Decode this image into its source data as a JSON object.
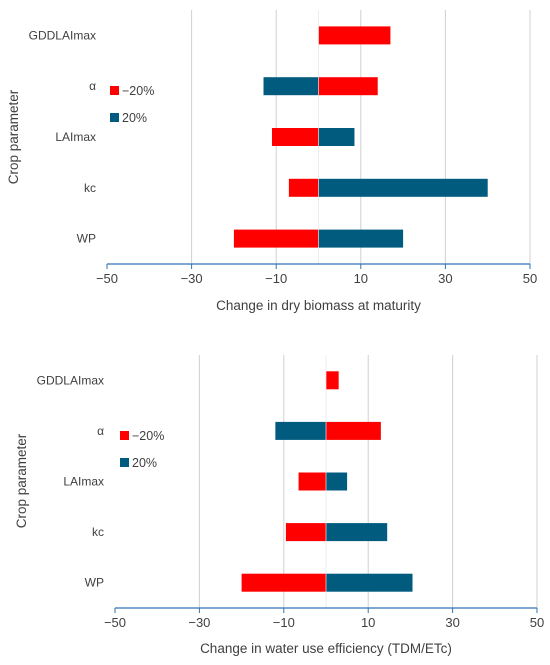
{
  "chart_data": [
    {
      "type": "bar",
      "orientation": "horizontal",
      "categories": [
        "GDDLAImax",
        "α",
        "LAImax",
        "kc",
        "WP"
      ],
      "series": [
        {
          "name": "−20%",
          "values": [
            17,
            14,
            -11,
            -7,
            -20
          ]
        },
        {
          "name": "20%",
          "values": [
            null,
            -13,
            8.5,
            40,
            20
          ]
        }
      ],
      "xlabel": "Change in dry biomass at maturity",
      "ylabel": "Crop parameter",
      "xlim": [
        -50,
        50
      ],
      "xticks": [
        "−50",
        "−30",
        "−10",
        "10",
        "30",
        "50"
      ],
      "tick_values": [
        -50,
        -30,
        -10,
        10,
        30,
        50
      ],
      "grid": true,
      "legend_position": "left"
    },
    {
      "type": "bar",
      "orientation": "horizontal",
      "categories": [
        "GDDLAImax",
        "α",
        "LAImax",
        "kc",
        "WP"
      ],
      "series": [
        {
          "name": "−20%",
          "values": [
            3,
            13,
            -6.5,
            -9.5,
            -20
          ]
        },
        {
          "name": "20%",
          "values": [
            null,
            -12,
            5,
            14.5,
            20.5
          ]
        }
      ],
      "xlabel": "Change in water use efficiency (TDM/ETc)",
      "ylabel": "Crop parameter",
      "xlim": [
        -50,
        50
      ],
      "xticks": [
        "−50",
        "−30",
        "−10",
        "10",
        "30",
        "50"
      ],
      "tick_values": [
        -50,
        -30,
        -10,
        10,
        30,
        50
      ],
      "grid": true,
      "legend_position": "left"
    }
  ],
  "colors": {
    "minus20": "#ff0000",
    "plus20": "#005b7f",
    "grid": "#d0d0d0",
    "axis": "#2e75b6",
    "text": "#404040"
  }
}
